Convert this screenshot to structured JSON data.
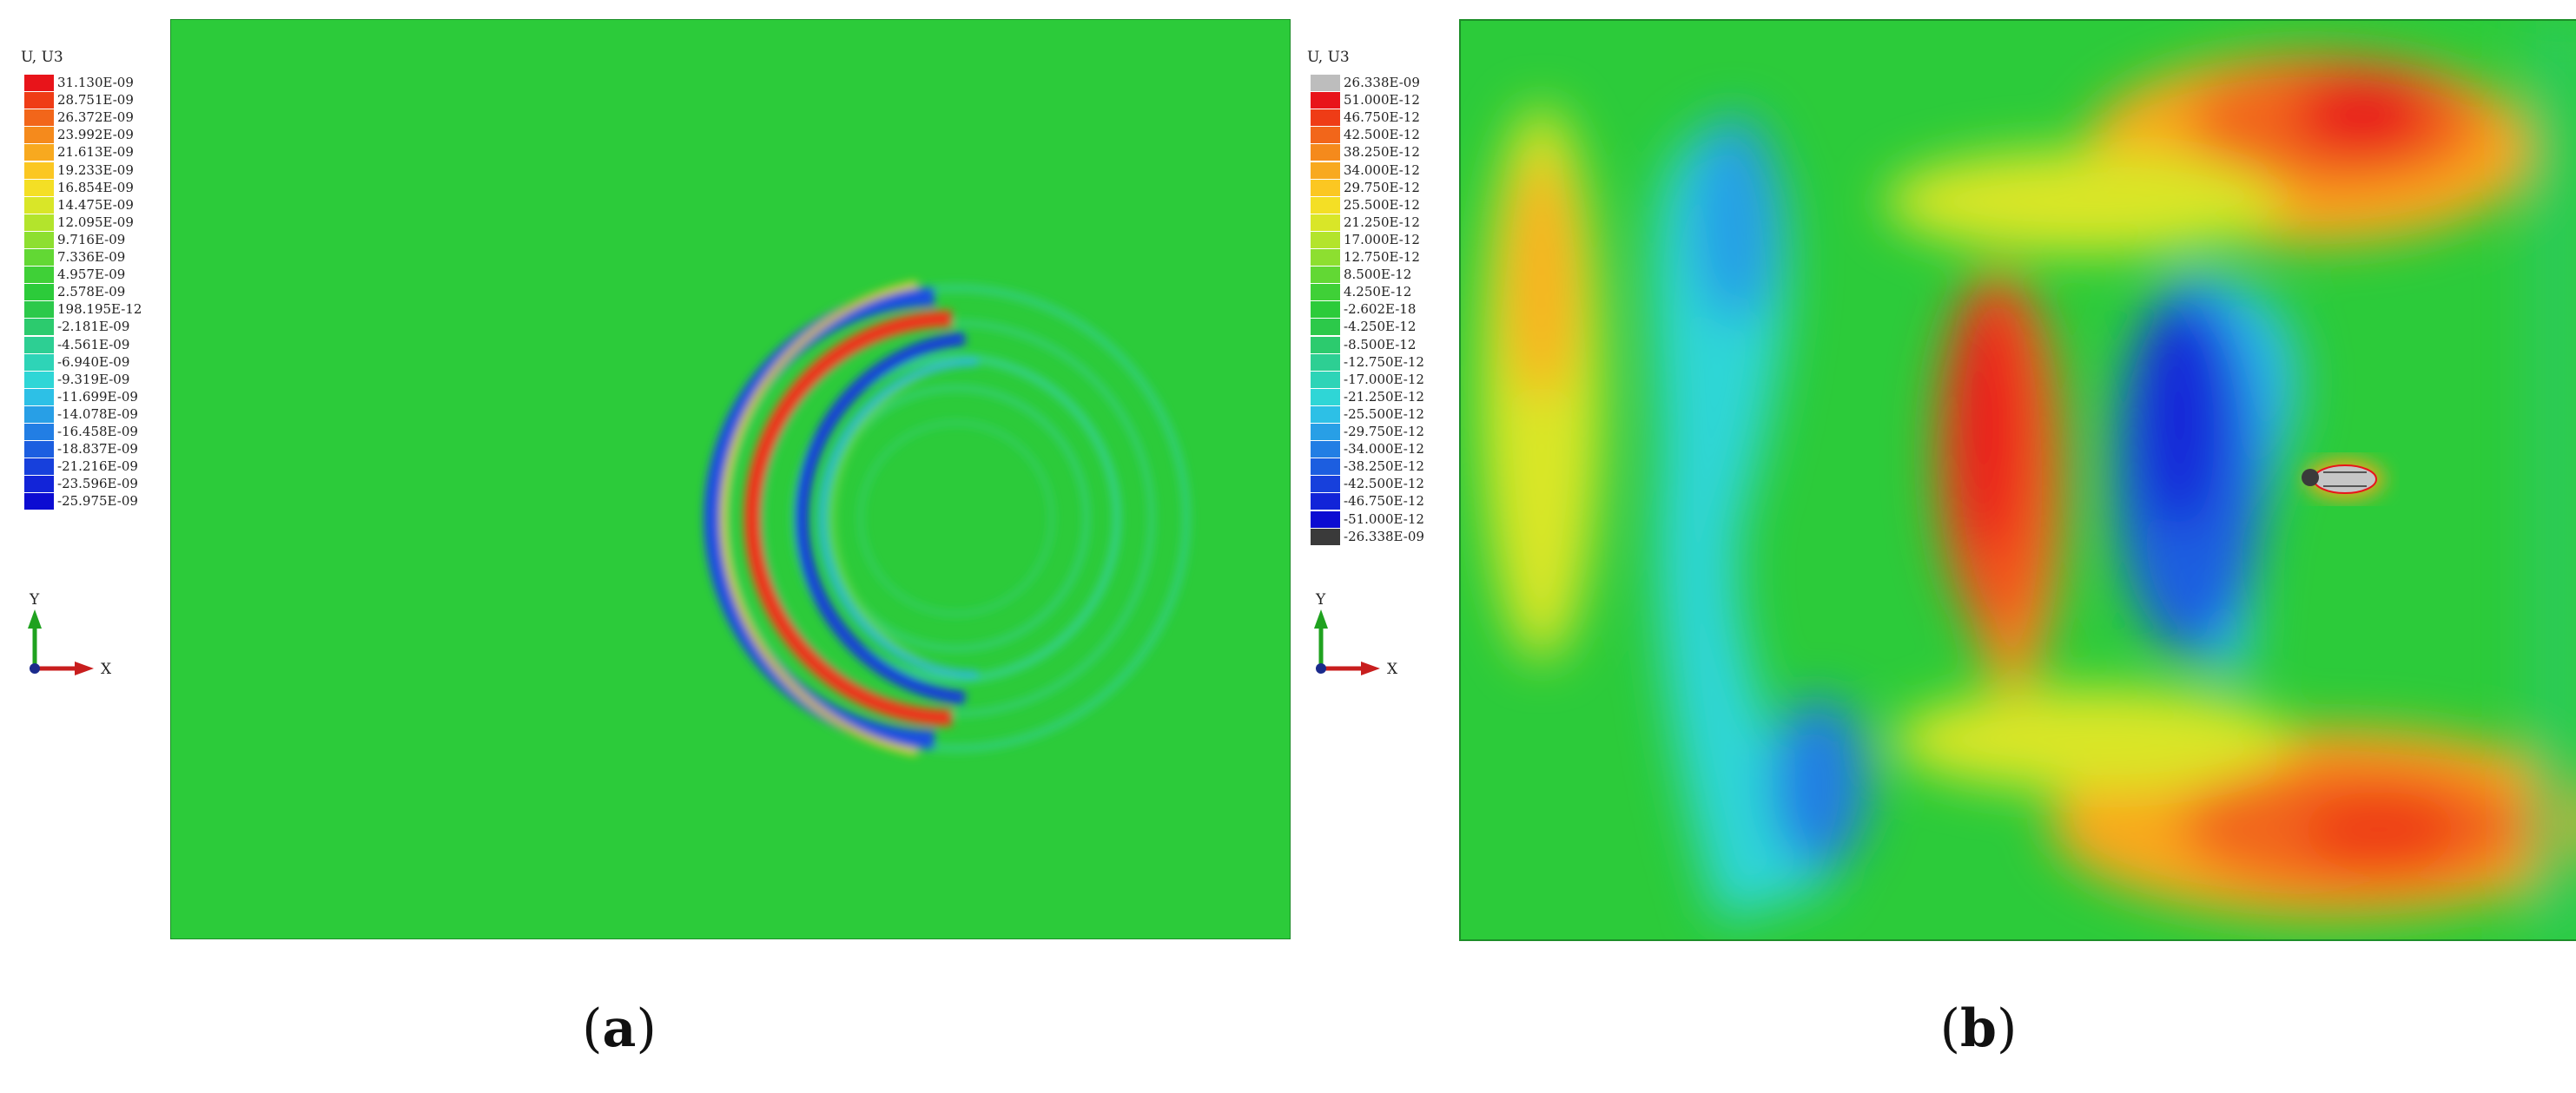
{
  "panels": [
    {
      "id": "a",
      "caption_open": "(",
      "caption_letter": "a",
      "caption_close": ")",
      "legend": {
        "title": "U, U3",
        "labels": [
          "31.130E-09",
          "28.751E-09",
          "26.372E-09",
          "23.992E-09",
          "21.613E-09",
          "19.233E-09",
          "16.854E-09",
          "14.475E-09",
          "12.095E-09",
          "9.716E-09",
          "7.336E-09",
          "4.957E-09",
          "2.578E-09",
          "198.195E-12",
          "-2.181E-09",
          "-4.561E-09",
          "-6.940E-09",
          "-9.319E-09",
          "-11.699E-09",
          "-14.078E-09",
          "-16.458E-09",
          "-18.837E-09",
          "-21.216E-09",
          "-23.596E-09",
          "-25.975E-09"
        ],
        "colors": [
          "#e8141a",
          "#ef3c16",
          "#f2661a",
          "#f58a1c",
          "#f8a91f",
          "#fbc722",
          "#f4df25",
          "#d9e628",
          "#b3e42c",
          "#8ddf30",
          "#62d834",
          "#3fd037",
          "#2ccb3a",
          "#2cc94a",
          "#2ccb6e",
          "#2dcf93",
          "#2ed4b7",
          "#2fd6d6",
          "#2dc0e6",
          "#289fe6",
          "#227ee4",
          "#1c5ee0",
          "#1740dc",
          "#1224d8",
          "#0c0cd2"
        ]
      },
      "axis_x": "X",
      "axis_y": "Y"
    },
    {
      "id": "b",
      "caption_open": "(",
      "caption_letter": "b",
      "caption_close": ")",
      "legend": {
        "title": "U, U3",
        "labels": [
          "26.338E-09",
          "51.000E-12",
          "46.750E-12",
          "42.500E-12",
          "38.250E-12",
          "34.000E-12",
          "29.750E-12",
          "25.500E-12",
          "21.250E-12",
          "17.000E-12",
          "12.750E-12",
          "8.500E-12",
          "4.250E-12",
          "-2.602E-18",
          "-4.250E-12",
          "-8.500E-12",
          "-12.750E-12",
          "-17.000E-12",
          "-21.250E-12",
          "-25.500E-12",
          "-29.750E-12",
          "-34.000E-12",
          "-38.250E-12",
          "-42.500E-12",
          "-46.750E-12",
          "-51.000E-12",
          "-26.338E-09"
        ],
        "colors": [
          "#bdbdbd",
          "#e8141a",
          "#ef3c16",
          "#f2661a",
          "#f58a1c",
          "#f8a91f",
          "#fbc722",
          "#f4df25",
          "#d9e628",
          "#b3e42c",
          "#8ddf30",
          "#62d834",
          "#3fd037",
          "#2ccb3a",
          "#2cc94a",
          "#2ccb6e",
          "#2dcf93",
          "#2ed4b7",
          "#2fd6d6",
          "#2dc0e6",
          "#289fe6",
          "#227ee4",
          "#1c5ee0",
          "#1740dc",
          "#1224d8",
          "#0c0cd2",
          "#3a3a3a"
        ]
      },
      "axis_x": "X",
      "axis_y": "Y"
    }
  ]
}
